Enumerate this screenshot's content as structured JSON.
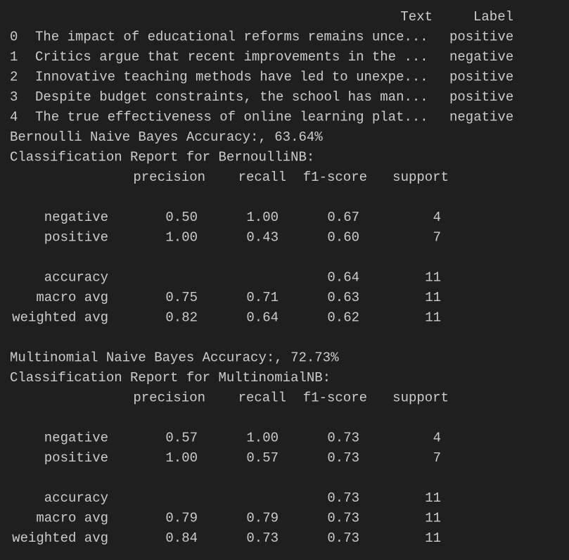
{
  "dataframe": {
    "columns": [
      "Text",
      "Label"
    ],
    "rows": [
      {
        "index": 0,
        "text": "The impact of educational reforms remains unce...",
        "label": "positive"
      },
      {
        "index": 1,
        "text": "Critics argue that recent improvements in the ...",
        "label": "negative"
      },
      {
        "index": 2,
        "text": "Innovative teaching methods have led to unexpe...",
        "label": "positive"
      },
      {
        "index": 3,
        "text": "Despite budget constraints, the school has man...",
        "label": "positive"
      },
      {
        "index": 4,
        "text": "The true effectiveness of online learning plat...",
        "label": "negative"
      }
    ]
  },
  "reports": [
    {
      "accuracy_line": "Bernoulli Naive Bayes Accuracy:, 63.64%",
      "title": "Classification Report for BernoulliNB:",
      "columns": [
        "precision",
        "recall",
        "f1-score",
        "support"
      ],
      "class_rows": [
        {
          "name": "negative",
          "precision": "0.50",
          "recall": "1.00",
          "f1": "0.67",
          "support": 4
        },
        {
          "name": "positive",
          "precision": "1.00",
          "recall": "0.43",
          "f1": "0.60",
          "support": 7
        }
      ],
      "summary_rows": [
        {
          "name": "accuracy",
          "f1": "0.64",
          "support": 11
        },
        {
          "name": "macro avg",
          "precision": "0.75",
          "recall": "0.71",
          "f1": "0.63",
          "support": 11
        },
        {
          "name": "weighted avg",
          "precision": "0.82",
          "recall": "0.64",
          "f1": "0.62",
          "support": 11
        }
      ]
    },
    {
      "accuracy_line": "Multinomial Naive Bayes Accuracy:, 72.73%",
      "title": "Classification Report for MultinomialNB:",
      "columns": [
        "precision",
        "recall",
        "f1-score",
        "support"
      ],
      "class_rows": [
        {
          "name": "negative",
          "precision": "0.57",
          "recall": "1.00",
          "f1": "0.73",
          "support": 4
        },
        {
          "name": "positive",
          "precision": "1.00",
          "recall": "0.57",
          "f1": "0.73",
          "support": 7
        }
      ],
      "summary_rows": [
        {
          "name": "accuracy",
          "f1": "0.73",
          "support": 11
        },
        {
          "name": "macro avg",
          "precision": "0.79",
          "recall": "0.79",
          "f1": "0.73",
          "support": 11
        },
        {
          "name": "weighted avg",
          "precision": "0.84",
          "recall": "0.73",
          "f1": "0.73",
          "support": 11
        }
      ]
    }
  ]
}
